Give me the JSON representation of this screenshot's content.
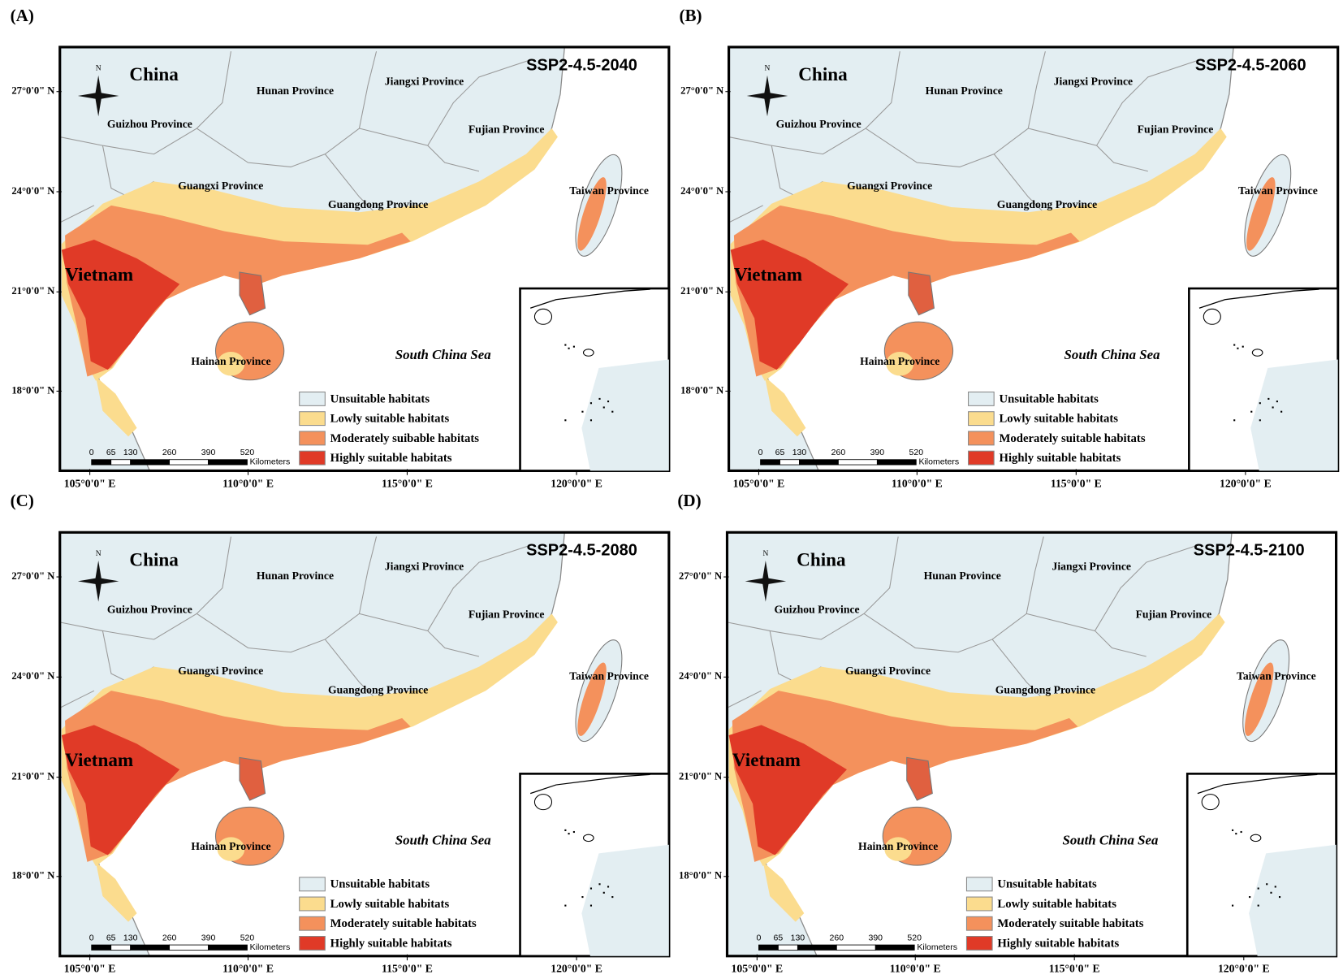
{
  "panels": [
    {
      "label": "(A)",
      "scenario": "SSP2-4.5-2040",
      "places": [
        "China",
        "Vietnam",
        "Hunan Province",
        "Jiangxi Province",
        "Guizhou Province",
        "Fujian Province",
        "Guangxi Province",
        "Guangdong Province",
        "Taiwan Province",
        "Hainan Province",
        "South China Sea"
      ],
      "legend": [
        {
          "name": "Unsuitable habitats",
          "color": "#e3eef2"
        },
        {
          "name": "Lowly suitable habitats",
          "color": "#fbdc8e"
        },
        {
          "name": "Moderately suibable habitats",
          "color": "#f4915c"
        },
        {
          "name": "Highly suitable habitats",
          "color": "#e03a27"
        }
      ]
    },
    {
      "label": "(B)",
      "scenario": "SSP2-4.5-2060",
      "places": [
        "China",
        "Vietnam",
        "Hunan Province",
        "Jiangxi Province",
        "Guizhou Province",
        "Fujian Province",
        "Guangxi Province",
        "Guangdong Province",
        "Taiwan Province",
        "Hainan Province",
        "South China Sea"
      ],
      "legend": [
        {
          "name": "Unsuitable habitats",
          "color": "#e3eef2"
        },
        {
          "name": "Lowly suitable habitats",
          "color": "#fbdc8e"
        },
        {
          "name": "Moderately suitable habitats",
          "color": "#f4915c"
        },
        {
          "name": "Highly suitable habitats",
          "color": "#e03a27"
        }
      ]
    },
    {
      "label": "(C)",
      "scenario": "SSP2-4.5-2080",
      "places": [
        "China",
        "Vietnam",
        "Hunan Province",
        "Jiangxi Province",
        "Guizhou Province",
        "Fujian Province",
        "Guangxi Province",
        "Guangdong Province",
        "Taiwan Province",
        "Hainan Province",
        "South China Sea"
      ],
      "legend": [
        {
          "name": "Unsuitable habitats",
          "color": "#e3eef2"
        },
        {
          "name": "Lowly suitable habitats",
          "color": "#fbdc8e"
        },
        {
          "name": "Moderately suitable habitats",
          "color": "#f4915c"
        },
        {
          "name": "Highly suitable habitats",
          "color": "#e03a27"
        }
      ]
    },
    {
      "label": "(D)",
      "scenario": "SSP2-4.5-2100",
      "places": [
        "China",
        "Vietnam",
        "Hunan Province",
        "Jiangxi Province",
        "Guizhou Province",
        "Fujian Province",
        "Guangxi Province",
        "Guangdong Province",
        "Taiwan Province",
        "Hainan Province",
        "South China Sea"
      ],
      "legend": [
        {
          "name": "Unsuitable habitats",
          "color": "#e3eef2"
        },
        {
          "name": "Lowly suitable habitats",
          "color": "#fbdc8e"
        },
        {
          "name": "Moderately suitable habitats",
          "color": "#f4915c"
        },
        {
          "name": "Highly suitable habitats",
          "color": "#e03a27"
        }
      ]
    }
  ],
  "latitude_labels": [
    "27°0'0\" N",
    "24°0'0\" N",
    "21°0'0\" N",
    "18°0'0\" N"
  ],
  "longitude_labels": [
    "105°0'0\" E",
    "110°0'0\" E",
    "115°0'0\" E",
    "120°0'0\" E"
  ],
  "compass": "N",
  "scale_bar": {
    "ticks": [
      0,
      65,
      130,
      260,
      390,
      520
    ],
    "unit": "Kilometers"
  }
}
